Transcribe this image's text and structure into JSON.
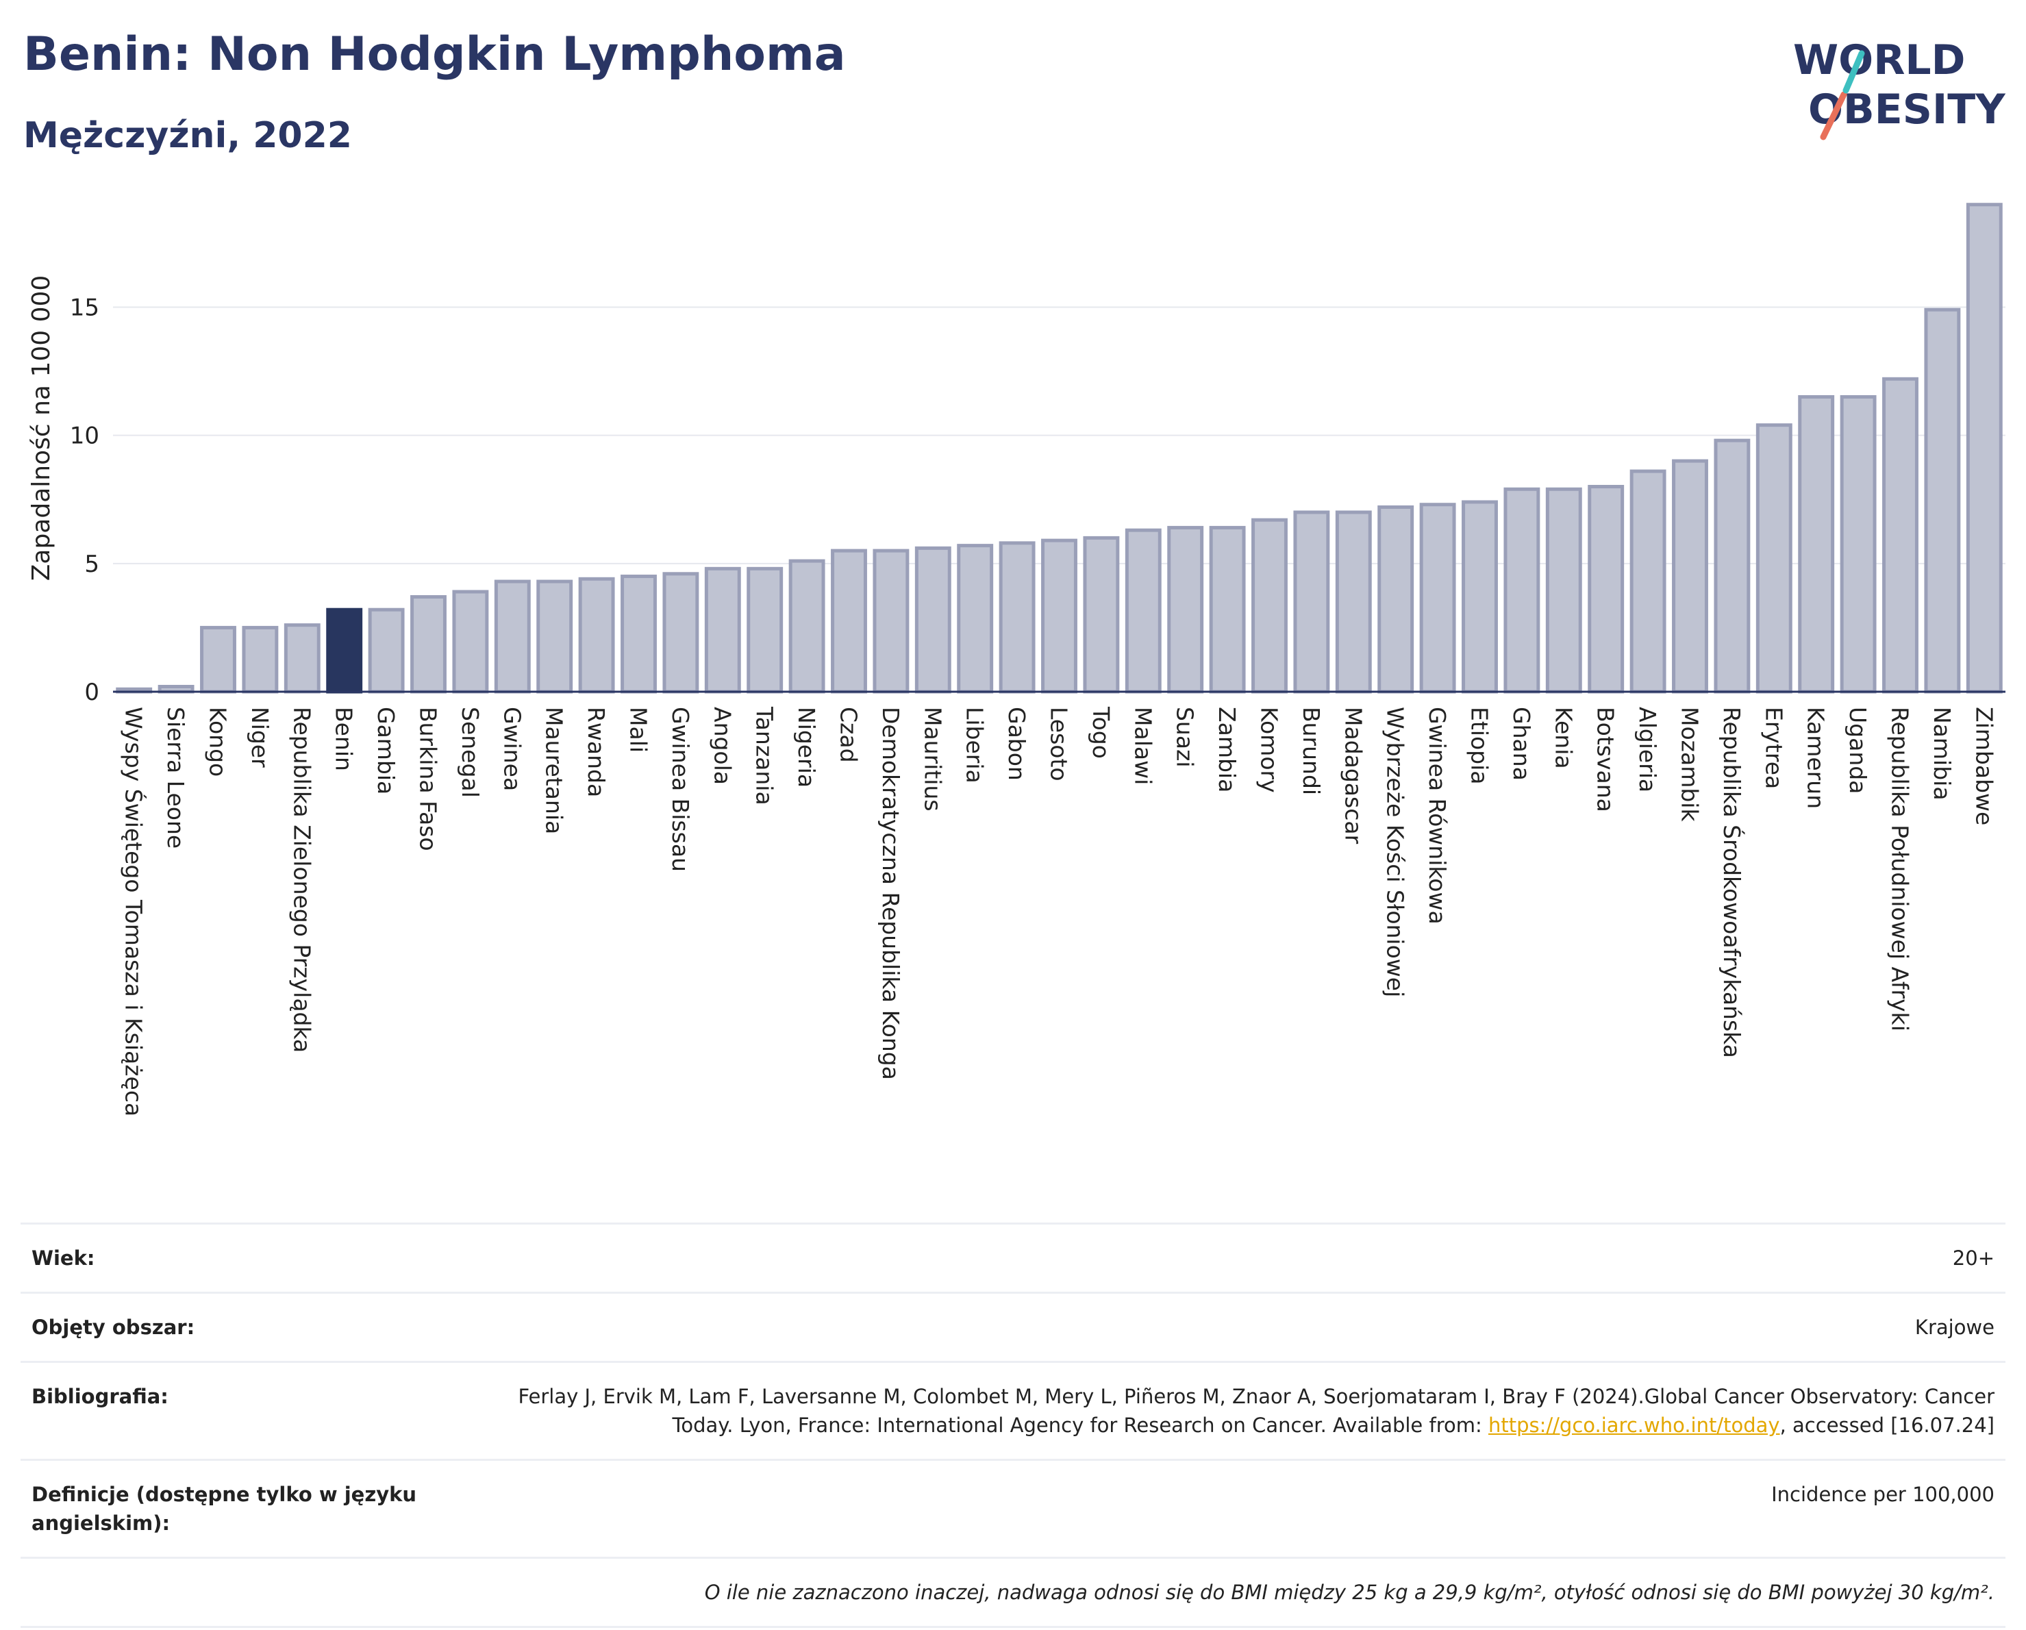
{
  "title": "Benin: Non Hodgkin Lymphoma",
  "subtitle": "Mężczyźni, 2022",
  "logo": {
    "line1": "WORLD",
    "line2": "OBESITY"
  },
  "chart_data": {
    "type": "bar",
    "ylabel": "Zapadalność na 100 000",
    "ylim": [
      0,
      19.5
    ],
    "yticks": [
      0,
      5,
      10,
      15
    ],
    "grid": true,
    "highlight": "Benin",
    "colors": {
      "bar": "#bfc3d2",
      "bar_edge": "#9a9fb8",
      "highlight": "#28365f"
    },
    "categories": [
      "Wyspy Świętego Tomasza i Książęca",
      "Sierra Leone",
      "Kongo",
      "Niger",
      "Republika Zielonego Przylądka",
      "Benin",
      "Gambia",
      "Burkina Faso",
      "Senegal",
      "Gwinea",
      "Mauretania",
      "Rwanda",
      "Mali",
      "Gwinea Bissau",
      "Angola",
      "Tanzania",
      "Nigeria",
      "Czad",
      "Demokratyczna Republika Konga",
      "Mauritius",
      "Liberia",
      "Gabon",
      "Lesoto",
      "Togo",
      "Malawi",
      "Suazi",
      "Zambia",
      "Komory",
      "Burundi",
      "Madagascar",
      "Wybrzeże Kości Słoniowej",
      "Gwinea Równikowa",
      "Etiopia",
      "Ghana",
      "Kenia",
      "Botsvana",
      "Algieria",
      "Mozambik",
      "Republika Środkowoafrykańska",
      "Erytrea",
      "Kamerun",
      "Uganda",
      "Republika Południowej Afryki",
      "Namibia",
      "Zimbabwe"
    ],
    "values": [
      0.1,
      0.2,
      2.5,
      2.5,
      2.6,
      3.2,
      3.2,
      3.7,
      3.9,
      4.3,
      4.3,
      4.4,
      4.5,
      4.6,
      4.8,
      4.8,
      5.1,
      5.5,
      5.5,
      5.6,
      5.7,
      5.8,
      5.9,
      6.0,
      6.3,
      6.4,
      6.4,
      6.7,
      7.0,
      7.0,
      7.2,
      7.3,
      7.4,
      7.9,
      7.9,
      8.0,
      8.6,
      9.0,
      9.8,
      10.4,
      11.5,
      11.5,
      12.2,
      14.9,
      19.0
    ]
  },
  "info": {
    "age_label": "Wiek:",
    "age_value": "20+",
    "coverage_label": "Objęty obszar:",
    "coverage_value": "Krajowe",
    "bib_label": "Bibliografia:",
    "bib_text_1": "Ferlay J, Ervik M, Lam F, Laversanne M, Colombet M, Mery L, Piñeros M, Znaor A, Soerjomataram I, Bray F (2024).Global Cancer Observatory: Cancer Today. Lyon, France: International Agency for Research on Cancer. Available from: ",
    "bib_link": "https://gco.iarc.who.int/today",
    "bib_text_2": ", accessed [16.07.24]",
    "def_label": "Definicje (dostępne tylko w języku angielskim):",
    "def_value": "Incidence per 100,000",
    "note": "O ile nie zaznaczono inaczej, nadwaga odnosi się do BMI między 25 kg a 29,9 kg/m², otyłość odnosi się do BMI powyżej 30 kg/m²."
  }
}
